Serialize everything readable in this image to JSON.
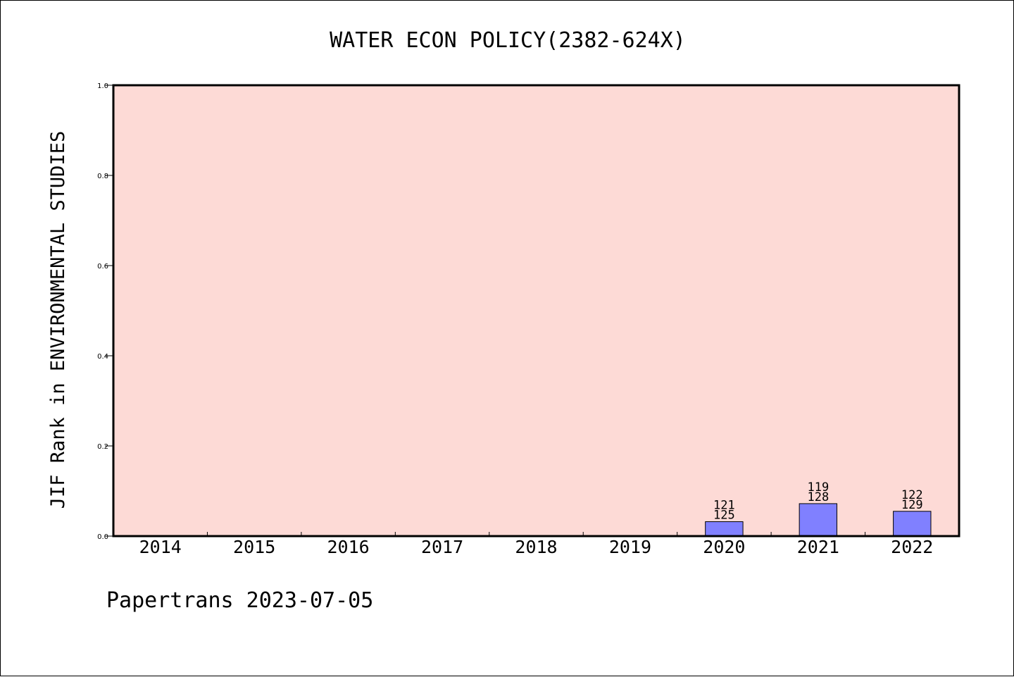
{
  "chart_data": {
    "type": "bar",
    "title": "WATER ECON POLICY(2382-624X)",
    "ylabel": "JIF Rank in ENVIRONMENTAL STUDIES",
    "xlabel": "",
    "categories": [
      "2014",
      "2015",
      "2016",
      "2017",
      "2018",
      "2019",
      "2020",
      "2021",
      "2022"
    ],
    "values": [
      null,
      null,
      null,
      null,
      null,
      null,
      0.032,
      0.072,
      0.055
    ],
    "bar_labels": [
      null,
      null,
      null,
      null,
      null,
      null,
      [
        "121",
        "125"
      ],
      [
        "119",
        "128"
      ],
      [
        "122",
        "129"
      ]
    ],
    "ylim": [
      0,
      1.0
    ],
    "yticks": [
      "0.0",
      "0.2",
      "0.4",
      "0.6",
      "0.8",
      "1.0"
    ],
    "grid": false,
    "colors": {
      "plot_background": "#fddad6",
      "bar_fill": "#8080ff",
      "bar_stroke": "#000000",
      "axis": "#000000"
    }
  },
  "footer": {
    "note": "Papertrans 2023-07-05"
  }
}
